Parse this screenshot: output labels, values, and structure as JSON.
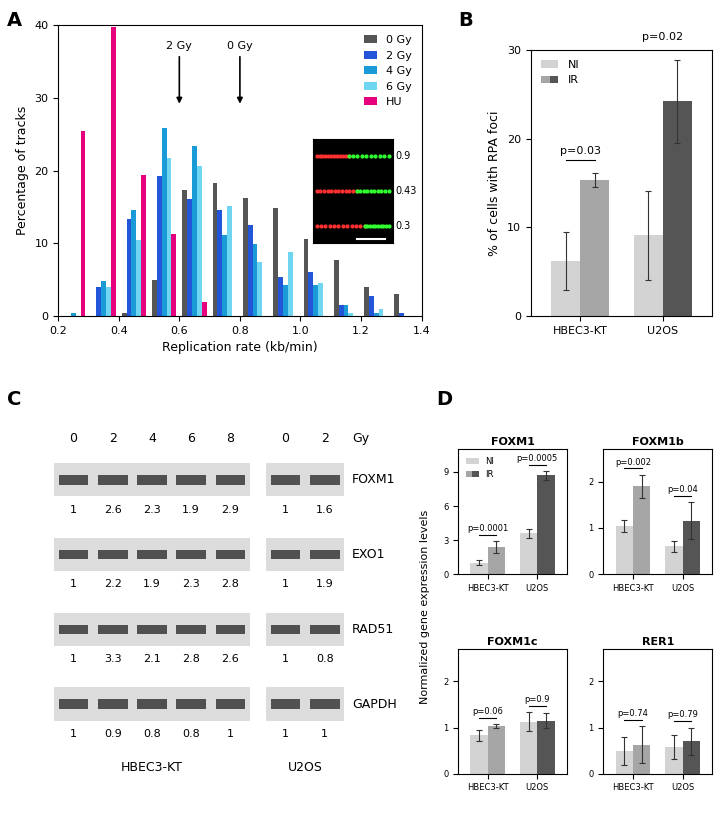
{
  "panel_labels": [
    "A",
    "B",
    "C",
    "D"
  ],
  "chart_data": [
    {
      "type": "bar",
      "xlabel": "Replication rate (kb/min)",
      "ylabel": "Percentage of tracks",
      "x": [
        0.25,
        0.35,
        0.45,
        0.55,
        0.65,
        0.75,
        0.85,
        0.95,
        1.05,
        1.15,
        1.25,
        1.35
      ],
      "series": [
        {
          "name": "0 Gy",
          "color": "#555555",
          "values": [
            0,
            0,
            0.5,
            5,
            17.3,
            18.3,
            16.2,
            14.8,
            10.6,
            7.7,
            4,
            3
          ]
        },
        {
          "name": "2 Gy",
          "color": "#2255d8",
          "values": [
            0,
            4,
            13.3,
            19.3,
            16.1,
            14.6,
            12.5,
            5.4,
            6,
            1.5,
            2.8,
            0.5
          ]
        },
        {
          "name": "4 Gy",
          "color": "#1a9ad6",
          "values": [
            0.4,
            4.8,
            14.6,
            25.8,
            23.4,
            11.2,
            9.9,
            4.3,
            4.3,
            1.5,
            0.4,
            0
          ]
        },
        {
          "name": "6 Gy",
          "color": "#6ed6f0",
          "values": [
            0,
            4,
            10.4,
            21.7,
            20.6,
            15.2,
            7.5,
            8.8,
            4.5,
            0.5,
            1,
            0
          ]
        },
        {
          "name": "HU",
          "color": "#e6007e",
          "values": [
            25.5,
            39.7,
            19.4,
            11.3,
            2,
            0,
            0,
            0,
            0,
            0,
            0,
            0
          ]
        }
      ],
      "xlim": [
        0.2,
        1.4
      ],
      "xticks": [
        0.2,
        0.4,
        0.6,
        0.8,
        1.0,
        1.2,
        1.4
      ],
      "ylim": [
        0,
        40
      ],
      "yticks": [
        0,
        10,
        20,
        30,
        40
      ],
      "legend": "upper right",
      "annotations": [
        {
          "text": "2 Gy",
          "x": 0.6
        },
        {
          "text": "0 Gy",
          "x": 0.8
        }
      ],
      "inset": {
        "labels": [
          0.9,
          0.43,
          0.3
        ]
      }
    },
    {
      "type": "bar",
      "ylabel": "% of cells with RPA foci",
      "categories": [
        "HBEC3-KT",
        "U2OS"
      ],
      "series": [
        {
          "name": "NI",
          "color": "#d3d3d3",
          "values": [
            6.2,
            9.1
          ],
          "errors": [
            3.3,
            5.0
          ]
        },
        {
          "name": "IR",
          "colors": [
            "#a6a6a6",
            "#555555"
          ],
          "values": [
            15.3,
            24.2
          ],
          "errors": [
            0.8,
            4.7
          ]
        }
      ],
      "ylim": [
        0,
        30
      ],
      "yticks": [
        0,
        10,
        20,
        30
      ],
      "legend": "upper left",
      "p_values": [
        "p=0.03",
        "p=0.02"
      ]
    },
    {
      "type": "bar",
      "title": "FOXM1",
      "categories": [
        "HBEC3-KT",
        "U2OS"
      ],
      "series": [
        {
          "name": "NI",
          "color": "#d3d3d3",
          "values": [
            1.0,
            3.6
          ],
          "errors": [
            0.2,
            0.4
          ]
        },
        {
          "name": "IR",
          "colors": [
            "#a6a6a6",
            "#555555"
          ],
          "values": [
            2.4,
            8.7
          ],
          "errors": [
            0.5,
            0.4
          ]
        }
      ],
      "ylim": [
        0,
        11
      ],
      "yticks": [
        0,
        3,
        6,
        9
      ],
      "legend": "upper left",
      "p_values": [
        "p=0.0001",
        "p=0.0005"
      ]
    },
    {
      "type": "bar",
      "title": "FOXM1b",
      "categories": [
        "HBEC3-KT",
        "U2OS"
      ],
      "series": [
        {
          "name": "NI",
          "color": "#d3d3d3",
          "values": [
            1.03,
            0.6
          ],
          "errors": [
            0.13,
            0.12
          ]
        },
        {
          "name": "IR",
          "colors": [
            "#a6a6a6",
            "#555555"
          ],
          "values": [
            1.9,
            1.15
          ],
          "errors": [
            0.25,
            0.4
          ]
        }
      ],
      "ylim": [
        0,
        2.7
      ],
      "yticks": [
        0,
        1,
        2
      ],
      "p_values": [
        "p=0.002",
        "p=0.04"
      ]
    },
    {
      "type": "bar",
      "title": "FOXM1c",
      "categories": [
        "HBEC3-KT",
        "U2OS"
      ],
      "series": [
        {
          "name": "NI",
          "color": "#d3d3d3",
          "values": [
            0.83,
            1.13
          ],
          "errors": [
            0.12,
            0.2
          ]
        },
        {
          "name": "IR",
          "colors": [
            "#a6a6a6",
            "#555555"
          ],
          "values": [
            1.03,
            1.15
          ],
          "errors": [
            0.05,
            0.17
          ]
        }
      ],
      "ylim": [
        0,
        2.7
      ],
      "yticks": [
        0,
        1,
        2
      ],
      "p_values": [
        "p=0.06",
        "p=0.9"
      ]
    },
    {
      "type": "bar",
      "title": "RER1",
      "categories": [
        "HBEC3-KT",
        "U2OS"
      ],
      "series": [
        {
          "name": "NI",
          "color": "#d3d3d3",
          "values": [
            0.5,
            0.58
          ],
          "errors": [
            0.3,
            0.25
          ]
        },
        {
          "name": "IR",
          "colors": [
            "#a6a6a6",
            "#555555"
          ],
          "values": [
            0.63,
            0.7
          ],
          "errors": [
            0.4,
            0.3
          ]
        }
      ],
      "ylim": [
        0,
        2.7
      ],
      "yticks": [
        0,
        1,
        2
      ],
      "p_values": [
        "p=0.74",
        "p=0.79"
      ]
    }
  ],
  "panel_D": {
    "ylabel": "Normalized gene expression levels"
  },
  "blot": {
    "dose_unit": "Gy",
    "cell_lines": [
      {
        "name": "HBEC3-KT",
        "doses": [
          0,
          2,
          4,
          6,
          8
        ]
      },
      {
        "name": "U2OS",
        "doses": [
          0,
          2
        ]
      }
    ],
    "proteins": [
      {
        "name": "FOXM1",
        "ratios": [
          [
            1,
            2.6,
            2.3,
            1.9,
            2.9
          ],
          [
            1,
            1.6
          ]
        ]
      },
      {
        "name": "EXO1",
        "ratios": [
          [
            1,
            2.2,
            1.9,
            2.3,
            2.8
          ],
          [
            1,
            1.9
          ]
        ]
      },
      {
        "name": "RAD51",
        "ratios": [
          [
            1,
            3.3,
            2.1,
            2.8,
            2.6
          ],
          [
            1,
            0.8
          ]
        ]
      },
      {
        "name": "GAPDH",
        "ratios": [
          [
            1,
            0.9,
            0.8,
            0.8,
            1
          ],
          [
            1,
            1
          ]
        ]
      }
    ]
  }
}
